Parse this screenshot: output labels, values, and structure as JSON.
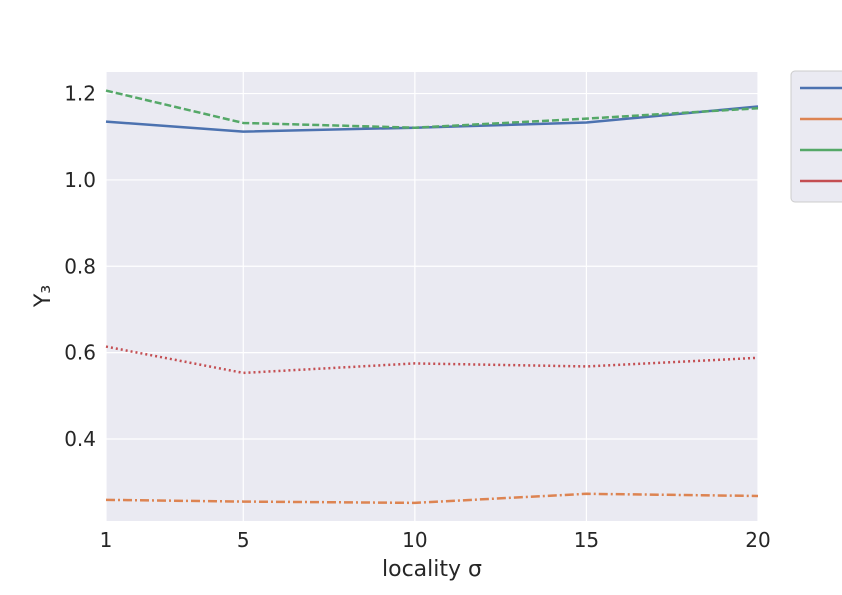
{
  "chart_data": {
    "type": "line",
    "xlabel": "locality σ",
    "ylabel": "Y₃",
    "x": [
      1,
      5,
      10,
      15,
      20
    ],
    "xticks": [
      "1",
      "5",
      "10",
      "15",
      "20"
    ],
    "yticks": [
      "0.4",
      "0.6",
      "0.8",
      "1.0",
      "1.2"
    ],
    "xlim": [
      1,
      20
    ],
    "ylim": [
      0.21,
      1.25
    ],
    "grid": true,
    "legend_position": "outside-right",
    "series": [
      {
        "values": [
          1.135,
          1.112,
          1.121,
          1.133,
          1.17
        ],
        "color": "#4c72b0",
        "dash": "solid"
      },
      {
        "values": [
          0.259,
          0.255,
          0.252,
          0.273,
          0.268
        ],
        "color": "#dd8452",
        "dash": "dashdot"
      },
      {
        "values": [
          1.207,
          1.132,
          1.121,
          1.142,
          1.166
        ],
        "color": "#55a868",
        "dash": "dashed"
      },
      {
        "values": [
          0.614,
          0.553,
          0.575,
          0.568,
          0.588
        ],
        "color": "#c44e52",
        "dash": "dotted"
      }
    ]
  }
}
